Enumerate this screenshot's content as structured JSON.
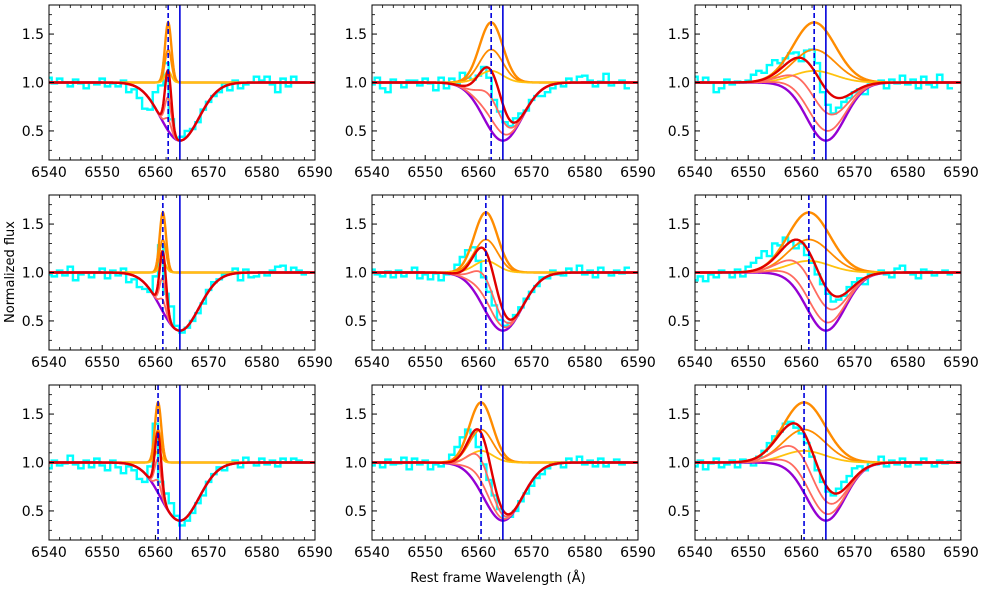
{
  "figure": {
    "xlabel": "Rest frame Wavelength (Å)",
    "ylabel": "Normalized flux"
  },
  "colors": {
    "observed": "#00ffff",
    "absorption": "#9400d3",
    "emission_dark": "#ff8c00",
    "emission_light": "#ffc20e",
    "total_best": "#e00000",
    "total_other": "#ff6b60",
    "line_rest": "#0000dd",
    "line_shifted": "#0000dd"
  },
  "chart_data": {
    "type": "line",
    "description_axes": "3x3 grid of spectral-fit panels sharing axes",
    "xlim": [
      6540,
      6590
    ],
    "ylim": [
      0.2,
      1.8
    ],
    "xticks": [
      6540,
      6550,
      6560,
      6570,
      6580,
      6590
    ],
    "yticks": [
      0.5,
      1.0,
      1.5
    ],
    "absorption_model": {
      "center": 6564.6,
      "depth": 0.6,
      "sigma": 3.6
    },
    "rows": [
      {
        "shifted_line": 6562.4
      },
      {
        "shifted_line": 6561.4
      },
      {
        "shifted_line": 6560.5
      }
    ],
    "columns": [
      {
        "emission_sigma": 0.6
      },
      {
        "emission_sigma": 2.2
      },
      {
        "emission_sigma": 4.0
      }
    ],
    "emission_amplitudes": [
      0.62,
      0.34,
      0.12
    ],
    "rest_line": 6564.6,
    "panels": [
      {
        "row": 0,
        "col": 0,
        "observed": {
          "x": [
            6540,
            6541,
            6542,
            6543,
            6544,
            6545,
            6546,
            6547,
            6548,
            6549,
            6550,
            6551,
            6552,
            6553,
            6554,
            6555,
            6556,
            6557,
            6558,
            6559,
            6560,
            6561,
            6562,
            6563,
            6564,
            6565,
            6566,
            6567,
            6568,
            6569,
            6570,
            6571,
            6572,
            6573,
            6574,
            6575,
            6576,
            6577,
            6578,
            6579,
            6580,
            6581,
            6582,
            6583,
            6584,
            6585,
            6586,
            6587,
            6588
          ],
          "y": [
            1.05,
            0.99,
            1.04,
            1.0,
            0.96,
            1.03,
            0.99,
            0.94,
            1.0,
            0.98,
            1.04,
            0.96,
            0.99,
            0.96,
            1.02,
            0.9,
            0.93,
            0.84,
            0.73,
            0.72,
            0.9,
            0.97,
            1.2,
            0.62,
            0.43,
            0.44,
            0.5,
            0.52,
            0.59,
            0.72,
            0.8,
            0.86,
            0.9,
            0.99,
            0.92,
            1.02,
            0.94,
            0.98,
            1.0,
            1.06,
            1.02,
            1.06,
            0.98,
            0.9,
            1.04,
            0.96,
            1.06,
            1.0,
            1.0
          ]
        }
      },
      {
        "row": 0,
        "col": 1,
        "observed": {
          "x": [
            6540,
            6541,
            6542,
            6543,
            6544,
            6545,
            6546,
            6547,
            6548,
            6549,
            6550,
            6551,
            6552,
            6553,
            6554,
            6555,
            6556,
            6557,
            6558,
            6559,
            6560,
            6561,
            6562,
            6563,
            6564,
            6565,
            6566,
            6567,
            6568,
            6569,
            6570,
            6571,
            6572,
            6573,
            6574,
            6575,
            6576,
            6577,
            6578,
            6579,
            6580,
            6581,
            6582,
            6583,
            6584,
            6585,
            6586,
            6587,
            6588
          ],
          "y": [
            0.98,
            1.05,
            0.94,
            0.9,
            1.03,
            1.0,
            0.95,
            1.02,
            1.02,
            0.97,
            1.04,
            0.99,
            0.92,
            1.05,
            0.94,
            1.04,
            0.99,
            1.1,
            1.05,
            1.03,
            1.07,
            1.16,
            1.05,
            0.82,
            0.7,
            0.59,
            0.55,
            0.63,
            0.68,
            0.71,
            0.82,
            0.86,
            0.86,
            0.9,
            0.94,
            0.99,
            0.96,
            1.04,
            1.0,
            1.06,
            1.07,
            1.02,
            0.96,
            1.01,
            1.09,
            0.97,
            1.0,
            1.02,
            0.94
          ]
        }
      },
      {
        "row": 0,
        "col": 2,
        "observed": {
          "x": [
            6540,
            6541,
            6542,
            6543,
            6544,
            6545,
            6546,
            6547,
            6548,
            6549,
            6550,
            6551,
            6552,
            6553,
            6554,
            6555,
            6556,
            6557,
            6558,
            6559,
            6560,
            6561,
            6562,
            6563,
            6564,
            6565,
            6566,
            6567,
            6568,
            6569,
            6570,
            6571,
            6572,
            6573,
            6574,
            6575,
            6576,
            6577,
            6578,
            6579,
            6580,
            6581,
            6582,
            6583,
            6584,
            6585,
            6586,
            6587,
            6588
          ],
          "y": [
            1.06,
            1.0,
            1.05,
            1.0,
            0.9,
            0.94,
            1.03,
            0.98,
            1.01,
            1.0,
            1.02,
            1.08,
            1.12,
            1.1,
            1.18,
            1.23,
            1.2,
            1.25,
            1.3,
            1.31,
            1.22,
            1.33,
            1.34,
            1.2,
            0.9,
            0.77,
            0.68,
            0.74,
            0.8,
            0.84,
            0.9,
            0.93,
            0.88,
            0.98,
            1.0,
            1.02,
            0.94,
            1.03,
            0.99,
            1.07,
            0.98,
            1.03,
            0.94,
            1.06,
            0.98,
            0.95,
            1.08,
            1.0,
            0.94
          ]
        }
      },
      {
        "row": 1,
        "col": 0,
        "observed": {
          "x": [
            6540,
            6541,
            6542,
            6543,
            6544,
            6545,
            6546,
            6547,
            6548,
            6549,
            6550,
            6551,
            6552,
            6553,
            6554,
            6555,
            6556,
            6557,
            6558,
            6559,
            6560,
            6561,
            6562,
            6563,
            6564,
            6565,
            6566,
            6567,
            6568,
            6569,
            6570,
            6571,
            6572,
            6573,
            6574,
            6575,
            6576,
            6577,
            6578,
            6579,
            6580,
            6581,
            6582,
            6583,
            6584,
            6585,
            6586,
            6587,
            6588
          ],
          "y": [
            0.98,
            0.96,
            1.02,
            0.97,
            1.06,
            0.92,
            0.98,
            1.0,
            0.95,
            1.0,
            1.04,
            0.94,
            1.02,
            0.97,
            1.04,
            0.9,
            0.93,
            0.85,
            0.83,
            0.8,
            0.96,
            1.28,
            0.78,
            0.65,
            0.45,
            0.38,
            0.43,
            0.5,
            0.58,
            0.68,
            0.82,
            0.9,
            0.93,
            0.98,
            1.0,
            1.04,
            0.92,
            1.03,
            0.95,
            0.96,
            1.0,
            0.97,
            1.02,
            1.06,
            1.07,
            1.0,
            1.05,
            1.02,
            0.98
          ]
        }
      },
      {
        "row": 1,
        "col": 1,
        "observed": {
          "x": [
            6540,
            6541,
            6542,
            6543,
            6544,
            6545,
            6546,
            6547,
            6548,
            6549,
            6550,
            6551,
            6552,
            6553,
            6554,
            6555,
            6556,
            6557,
            6558,
            6559,
            6560,
            6561,
            6562,
            6563,
            6564,
            6565,
            6566,
            6567,
            6568,
            6569,
            6570,
            6571,
            6572,
            6573,
            6574,
            6575,
            6576,
            6577,
            6578,
            6579,
            6580,
            6581,
            6582,
            6583,
            6584,
            6585,
            6586,
            6587,
            6588
          ],
          "y": [
            1.03,
            0.98,
            0.96,
            1.01,
            0.95,
            1.02,
            0.96,
            1.0,
            1.05,
            0.94,
            0.98,
            0.93,
            0.99,
            0.92,
            0.98,
            1.0,
            1.08,
            1.16,
            1.23,
            1.26,
            1.12,
            0.95,
            0.8,
            0.66,
            0.51,
            0.45,
            0.48,
            0.56,
            0.64,
            0.73,
            0.8,
            0.86,
            0.95,
            0.94,
            1.02,
            0.98,
            0.97,
            1.04,
            1.0,
            1.07,
            0.98,
            1.02,
            0.95,
            1.05,
            1.0,
            0.97,
            1.02,
            0.99,
            1.05
          ]
        }
      },
      {
        "row": 1,
        "col": 2,
        "observed": {
          "x": [
            6540,
            6541,
            6542,
            6543,
            6544,
            6545,
            6546,
            6547,
            6548,
            6549,
            6550,
            6551,
            6552,
            6553,
            6554,
            6555,
            6556,
            6557,
            6558,
            6559,
            6560,
            6561,
            6562,
            6563,
            6564,
            6565,
            6566,
            6567,
            6568,
            6569,
            6570,
            6571,
            6572,
            6573,
            6574,
            6575,
            6576,
            6577,
            6578,
            6579,
            6580,
            6581,
            6582,
            6583,
            6584,
            6585,
            6586,
            6587,
            6588
          ],
          "y": [
            0.92,
            0.96,
            0.91,
            0.98,
            0.95,
            1.02,
            1.0,
            0.95,
            1.03,
            0.96,
            1.06,
            1.1,
            1.15,
            1.22,
            1.17,
            1.3,
            1.28,
            1.36,
            1.32,
            1.25,
            1.3,
            1.18,
            1.1,
            0.98,
            0.88,
            0.78,
            0.7,
            0.72,
            0.76,
            0.85,
            0.9,
            0.94,
            0.88,
            0.98,
            1.0,
            1.02,
            0.98,
            0.95,
            1.04,
            1.07,
            1.0,
            0.98,
            0.94,
            1.03,
            1.01,
            0.97,
            1.0,
            1.02,
            0.98
          ]
        }
      },
      {
        "row": 2,
        "col": 0,
        "observed": {
          "x": [
            6540,
            6541,
            6542,
            6543,
            6544,
            6545,
            6546,
            6547,
            6548,
            6549,
            6550,
            6551,
            6552,
            6553,
            6554,
            6555,
            6556,
            6557,
            6558,
            6559,
            6560,
            6561,
            6562,
            6563,
            6564,
            6565,
            6566,
            6567,
            6568,
            6569,
            6570,
            6571,
            6572,
            6573,
            6574,
            6575,
            6576,
            6577,
            6578,
            6579,
            6580,
            6581,
            6582,
            6583,
            6584,
            6585,
            6586,
            6587,
            6588
          ],
          "y": [
            0.94,
            1.02,
            0.97,
            0.99,
            1.07,
            0.98,
            0.94,
            1.02,
            0.95,
            1.04,
            0.97,
            0.92,
            1.02,
            0.95,
            0.89,
            0.96,
            0.92,
            0.83,
            0.8,
            0.96,
            1.4,
            0.8,
            0.68,
            0.58,
            0.45,
            0.35,
            0.4,
            0.48,
            0.58,
            0.66,
            0.8,
            0.88,
            0.95,
            0.92,
            1.0,
            1.02,
            0.95,
            1.05,
            1.0,
            0.97,
            1.04,
            0.98,
            1.02,
            0.96,
            1.04,
            1.0,
            1.04,
            1.02,
            1.0
          ]
        }
      },
      {
        "row": 2,
        "col": 1,
        "observed": {
          "x": [
            6540,
            6541,
            6542,
            6543,
            6544,
            6545,
            6546,
            6547,
            6548,
            6549,
            6550,
            6551,
            6552,
            6553,
            6554,
            6555,
            6556,
            6557,
            6558,
            6559,
            6560,
            6561,
            6562,
            6563,
            6564,
            6565,
            6566,
            6567,
            6568,
            6569,
            6570,
            6571,
            6572,
            6573,
            6574,
            6575,
            6576,
            6577,
            6578,
            6579,
            6580,
            6581,
            6582,
            6583,
            6584,
            6585,
            6586,
            6587,
            6588
          ],
          "y": [
            0.97,
            1.0,
            0.95,
            1.03,
            0.98,
            0.99,
            1.05,
            0.93,
            1.04,
            0.98,
            1.02,
            0.93,
            0.98,
            0.96,
            1.0,
            1.08,
            1.16,
            1.26,
            1.34,
            1.3,
            1.16,
            0.98,
            0.82,
            0.66,
            0.52,
            0.42,
            0.44,
            0.5,
            0.6,
            0.68,
            0.76,
            0.84,
            0.88,
            0.94,
            0.98,
            1.0,
            0.95,
            1.04,
            1.0,
            1.06,
            0.98,
            1.02,
            0.96,
            1.04,
            0.96,
            1.0,
            1.03,
            0.98,
            1.0
          ]
        }
      },
      {
        "row": 2,
        "col": 2,
        "observed": {
          "x": [
            6540,
            6541,
            6542,
            6543,
            6544,
            6545,
            6546,
            6547,
            6548,
            6549,
            6550,
            6551,
            6552,
            6553,
            6554,
            6555,
            6556,
            6557,
            6558,
            6559,
            6560,
            6561,
            6562,
            6563,
            6564,
            6565,
            6566,
            6567,
            6568,
            6569,
            6570,
            6571,
            6572,
            6573,
            6574,
            6575,
            6576,
            6577,
            6578,
            6579,
            6580,
            6581,
            6582,
            6583,
            6584,
            6585,
            6586,
            6587,
            6588
          ],
          "y": [
            0.96,
            1.02,
            0.93,
            0.99,
            1.04,
            0.95,
            0.98,
            1.02,
            0.95,
            1.03,
            1.0,
            0.97,
            1.06,
            1.12,
            1.2,
            1.27,
            1.32,
            1.4,
            1.42,
            1.36,
            1.3,
            1.2,
            1.06,
            0.92,
            0.8,
            0.7,
            0.66,
            0.73,
            0.8,
            0.86,
            0.94,
            0.96,
            0.92,
            1.0,
            0.98,
            1.06,
            0.96,
            1.02,
            0.98,
            1.04,
            0.96,
            1.0,
            0.98,
            1.04,
            1.0,
            0.96,
            1.02,
            0.99,
            1.01
          ]
        }
      }
    ]
  }
}
